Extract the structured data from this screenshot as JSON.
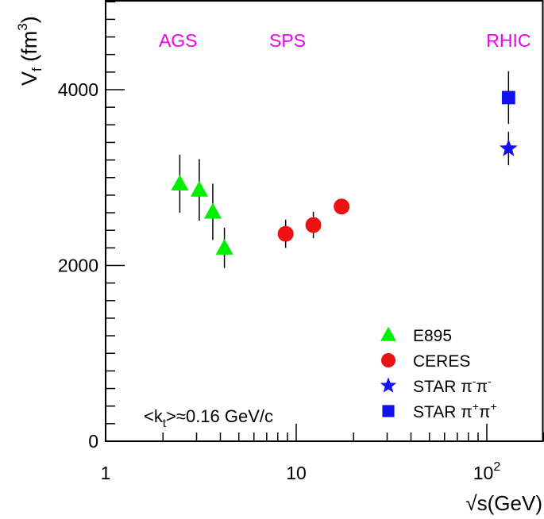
{
  "chart_data": {
    "type": "scatter",
    "x_scale": "log",
    "xlim": [
      1,
      200
    ],
    "ylim": [
      0,
      5000
    ],
    "x_ticks": [
      {
        "value": 1,
        "label": "1"
      },
      {
        "value": 10,
        "label": "10"
      },
      {
        "value": 100,
        "label": "10",
        "sup": "2"
      }
    ],
    "y_ticks": [
      {
        "value": 0,
        "label": "0"
      },
      {
        "value": 2000,
        "label": "2000"
      },
      {
        "value": 4000,
        "label": "4000"
      }
    ],
    "ylabel": {
      "main": "V",
      "sub": "f",
      "mid": " (fm",
      "sup": "3",
      "end": ")"
    },
    "xlabel": "√s(GeV)",
    "region_labels": [
      {
        "text": "AGS",
        "x": 2.4
      },
      {
        "text": "SPS",
        "x": 9.0
      },
      {
        "text": "RHIC",
        "x": 130
      }
    ],
    "region_label_color": "#ee00ee",
    "annotation": {
      "pre": "<k",
      "sub": "t",
      "post": ">≈0.16 GeV/c"
    },
    "series": [
      {
        "name": "E895",
        "legend": [
          {
            "t": "E895"
          }
        ],
        "marker": "triangle",
        "color": "#00ee00",
        "points": [
          {
            "x": 2.45,
            "y": 2930,
            "err": 330
          },
          {
            "x": 3.1,
            "y": 2860,
            "err": 350
          },
          {
            "x": 3.65,
            "y": 2610,
            "err": 320
          },
          {
            "x": 4.2,
            "y": 2200,
            "err": 230
          }
        ]
      },
      {
        "name": "CERES",
        "legend": [
          {
            "t": "CERES"
          }
        ],
        "marker": "circle",
        "color": "#ee1111",
        "points": [
          {
            "x": 8.8,
            "y": 2360,
            "err": 160
          },
          {
            "x": 12.3,
            "y": 2460,
            "err": 150
          },
          {
            "x": 17.3,
            "y": 2670,
            "err": 0
          }
        ]
      },
      {
        "name": "STAR π⁻π⁻",
        "legend": [
          {
            "t": "STAR π"
          },
          {
            "t": "-",
            "s": "sup"
          },
          {
            "t": "π"
          },
          {
            "t": "-",
            "s": "sup"
          }
        ],
        "marker": "star",
        "color": "#1111ee",
        "points": [
          {
            "x": 130,
            "y": 3330,
            "err": 190
          }
        ]
      },
      {
        "name": "STAR π⁺π⁺",
        "legend": [
          {
            "t": "STAR π"
          },
          {
            "t": "+",
            "s": "sup"
          },
          {
            "t": "π"
          },
          {
            "t": "+",
            "s": "sup"
          }
        ],
        "marker": "square",
        "color": "#1111ee",
        "points": [
          {
            "x": 130,
            "y": 3910,
            "err": 300
          }
        ]
      }
    ]
  }
}
